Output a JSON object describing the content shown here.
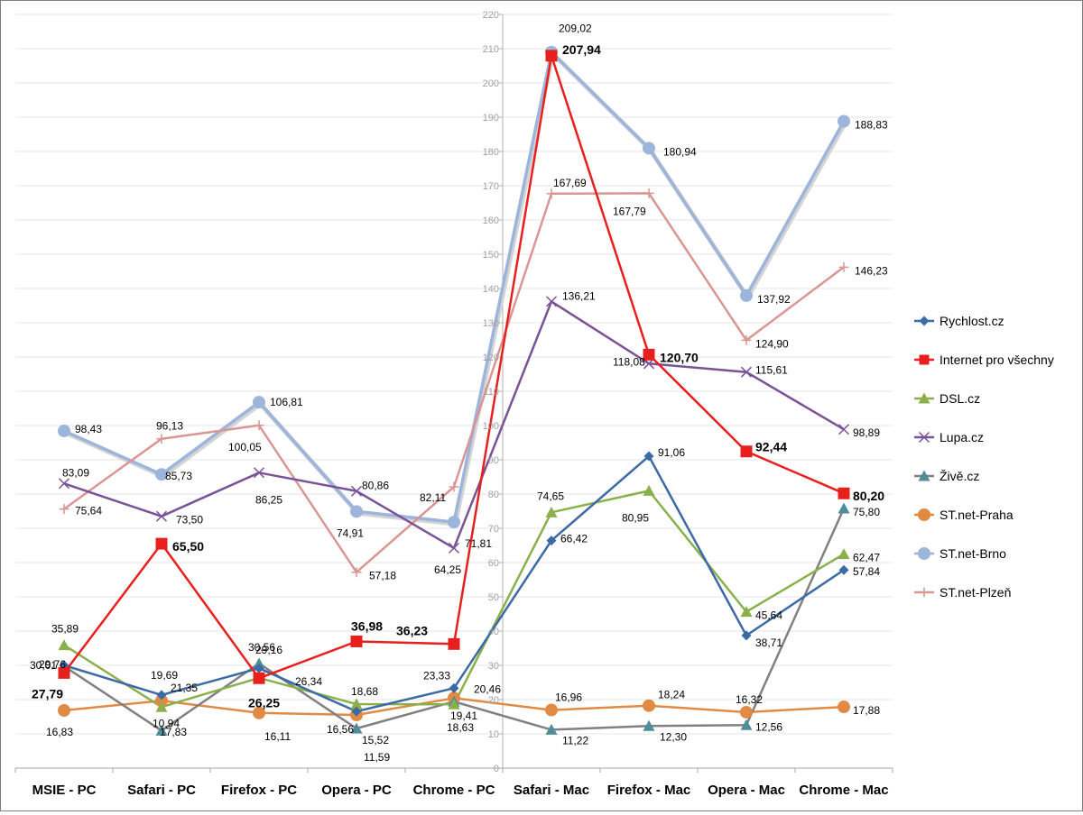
{
  "chart_data": {
    "type": "line",
    "title": "",
    "xlabel": "",
    "ylabel": "",
    "ylim": [
      0,
      220
    ],
    "ytick_step": 10,
    "grid": true,
    "legend_position": "right",
    "categories": [
      "MSIE - PC",
      "Safari - PC",
      "Firefox - PC",
      "Opera - PC",
      "Chrome - PC",
      "Safari - Mac",
      "Firefox - Mac",
      "Opera - Mac",
      "Chrome - Mac"
    ],
    "series": [
      {
        "name": "Rychlost.cz",
        "color": "#3c6aa5",
        "marker": "diamond",
        "values": [
          30.01,
          21.35,
          29.16,
          16.56,
          23.33,
          66.42,
          91.06,
          38.71,
          57.84
        ],
        "labels": [
          "30,01",
          "21,35",
          "29,16",
          "16,56",
          "23,33",
          "66,42",
          "91,06",
          "38,71",
          "57,84"
        ]
      },
      {
        "name": "Internet pro všechny",
        "color": "#e8201d",
        "marker": "square",
        "bold": true,
        "values": [
          27.79,
          65.5,
          26.25,
          36.98,
          36.23,
          207.94,
          120.7,
          92.44,
          80.2
        ],
        "labels": [
          "27,79",
          "65,50",
          "26,25",
          "36,98",
          "36,23",
          "207,94",
          "120,70",
          "92,44",
          "80,20"
        ]
      },
      {
        "name": "DSL.cz",
        "color": "#8ab04c",
        "marker": "triangle",
        "values": [
          35.89,
          17.83,
          26.34,
          18.68,
          18.63,
          74.65,
          80.95,
          45.64,
          62.47
        ],
        "labels": [
          "35,89",
          "17,83",
          "26,34",
          "18,68",
          "18,63",
          "74,65",
          "80,95",
          "45,64",
          "62,47"
        ]
      },
      {
        "name": "Lupa.cz",
        "color": "#7a5296",
        "marker": "x",
        "values": [
          83.09,
          73.5,
          86.25,
          80.86,
          64.25,
          136.21,
          118.08,
          115.61,
          98.89
        ],
        "labels": [
          "83,09",
          "73,50",
          "86,25",
          "80,86",
          "64,25",
          "136,21",
          "118,08",
          "115,61",
          "98,89"
        ]
      },
      {
        "name": "Živě.cz",
        "color": "#808080",
        "marker": "triangle-teal",
        "values": [
          29.76,
          10.94,
          30.56,
          11.59,
          19.41,
          11.22,
          12.3,
          12.56,
          75.8
        ],
        "labels": [
          "29,76",
          "10,94",
          "30,56",
          "11,59",
          "19,41",
          "11,22",
          "12,30",
          "12,56",
          "75,80"
        ]
      },
      {
        "name": "ST.net-Praha",
        "color": "#e08a44",
        "marker": "circle",
        "values": [
          16.83,
          19.69,
          16.11,
          15.52,
          20.46,
          16.96,
          18.24,
          16.32,
          17.88
        ],
        "labels": [
          "16,83",
          "19,69",
          "16,11",
          "15,52",
          "20,46",
          "16,96",
          "18,24",
          "16,32",
          "17,88"
        ]
      },
      {
        "name": "ST.net-Brno",
        "color": "#9db5da",
        "marker": "circle",
        "values": [
          98.43,
          85.73,
          106.81,
          74.91,
          71.81,
          209.02,
          180.94,
          137.92,
          188.83
        ],
        "labels": [
          "98,43",
          "85,73",
          "106,81",
          "74,91",
          "71,81",
          "209,02",
          "180,94",
          "137,92",
          "188,83"
        ]
      },
      {
        "name": "ST.net-Plzeň",
        "color": "#d99694",
        "marker": "plus",
        "values": [
          75.64,
          96.13,
          100.05,
          57.18,
          82.11,
          167.69,
          167.79,
          124.9,
          146.23
        ],
        "labels": [
          "75,64",
          "96,13",
          "100,05",
          "57,18",
          "82,11",
          "167,69",
          "167,79",
          "124,90",
          "146,23"
        ]
      }
    ]
  }
}
